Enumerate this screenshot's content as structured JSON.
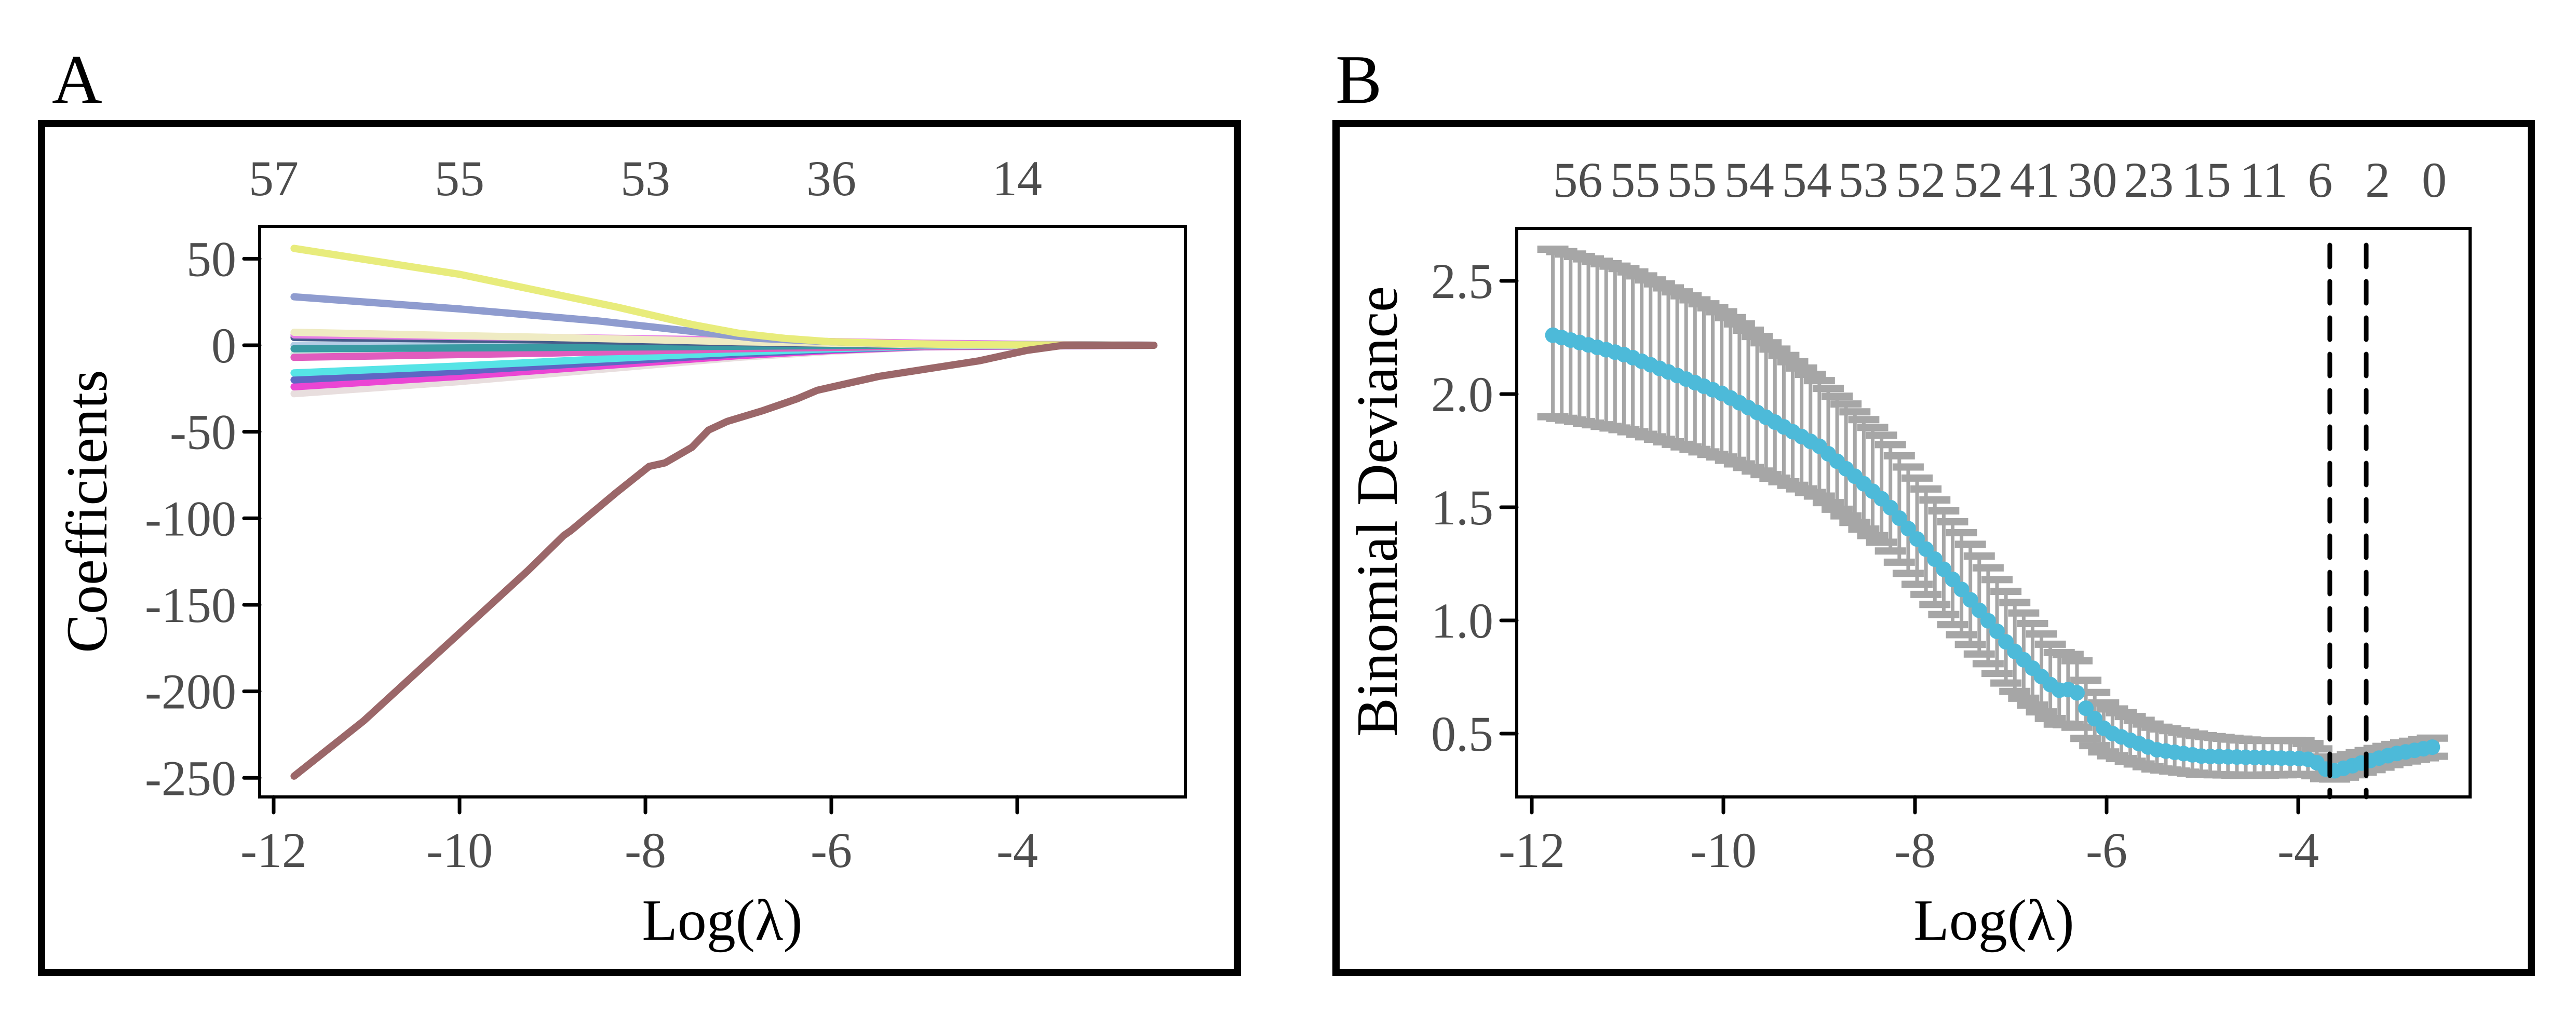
{
  "chart_data": [
    {
      "panel": "A",
      "type": "line",
      "xlabel": "Log(λ)",
      "ylabel": "Coefficients",
      "xlim": [
        -12.15,
        -2.2
      ],
      "ylim": [
        -260,
        68
      ],
      "x_ticks": [
        -12,
        -10,
        -8,
        -6,
        -4
      ],
      "x_tick_labels": [
        "-12",
        "-10",
        "-8",
        "-6",
        "-4"
      ],
      "y_ticks": [
        50,
        0,
        -50,
        -100,
        -150,
        -200,
        -250
      ],
      "y_tick_labels": [
        "50",
        "0",
        "-50",
        "-100",
        "-150",
        "-200",
        "-250"
      ],
      "top_axis": {
        "positions": [
          -12,
          -10,
          -8,
          -6,
          -4
        ],
        "labels": [
          "57",
          "55",
          "53",
          "36",
          "14"
        ]
      },
      "grid": false,
      "series": [
        {
          "name": "coef-brown",
          "color": "#9b6769",
          "x": [
            -11.78,
            -11.03,
            -9.26,
            -8.88,
            -8.8,
            -8.31,
            -7.96,
            -7.79,
            -7.5,
            -7.32,
            -7.12,
            -6.75,
            -6.37,
            -6.15,
            -5.49,
            -4.41,
            -3.9,
            -3.5,
            -2.53
          ],
          "y": [
            -249,
            -217,
            -130,
            -110,
            -107,
            -85,
            -70,
            -68,
            -59,
            -49,
            -44,
            -38,
            -31,
            -26,
            -18,
            -9,
            -3,
            0,
            0
          ]
        },
        {
          "name": "coef-yellow",
          "color": "#e8ec7c",
          "x": [
            -11.78,
            -10,
            -8.3,
            -7.5,
            -7,
            -6.5,
            -6,
            -5.3,
            -4.5,
            -2.53
          ],
          "y": [
            56,
            41,
            22,
            12,
            7,
            4,
            2,
            1,
            0.3,
            0
          ]
        },
        {
          "name": "coef-periwinkle",
          "color": "#8f9ccf",
          "x": [
            -11.78,
            -10,
            -8.5,
            -7.5,
            -6.8,
            -6,
            -5,
            -2.53
          ],
          "y": [
            28,
            21,
            14,
            8,
            4,
            2,
            0.5,
            0
          ]
        },
        {
          "name": "coef-pale-yellow",
          "color": "#efebc3",
          "x": [
            -11.78,
            -9,
            -7,
            -5,
            -2.53
          ],
          "y": [
            7.5,
            4.5,
            2,
            0.4,
            0
          ]
        },
        {
          "name": "coef-orchid-pos",
          "color": "#e77fe6",
          "x": [
            -11.78,
            -9,
            -7,
            -5,
            -3.5,
            -2.53
          ],
          "y": [
            6,
            4.5,
            3,
            1.2,
            0.3,
            0
          ]
        },
        {
          "name": "coef-dark-slate",
          "color": "#465c8a",
          "x": [
            -11.78,
            -9,
            -7,
            -5,
            -2.53
          ],
          "y": [
            4.5,
            3,
            1.5,
            0.4,
            0
          ]
        },
        {
          "name": "coef-teal",
          "color": "#3a9aa3",
          "x": [
            -11.78,
            -9,
            -7,
            -4,
            -2.53
          ],
          "y": [
            -2,
            -1.3,
            -0.6,
            0.5,
            0
          ]
        },
        {
          "name": "coef-light-blue",
          "color": "#b5cde6",
          "x": [
            -11.78,
            -9,
            -7,
            -5,
            -2.53
          ],
          "y": [
            0,
            0,
            0,
            0,
            0
          ]
        },
        {
          "name": "coef-orchid",
          "color": "#e05cbe",
          "x": [
            -11.78,
            -9,
            -7,
            -5,
            -2.53
          ],
          "y": [
            -7,
            -4.5,
            -2,
            -0.5,
            0
          ]
        },
        {
          "name": "coef-mint",
          "color": "#cfece0",
          "x": [
            -11.78,
            -9,
            -7,
            -5,
            -2.53
          ],
          "y": [
            -5,
            -3,
            -1.5,
            -0.3,
            0
          ]
        },
        {
          "name": "coef-cyan",
          "color": "#56e4e6",
          "x": [
            -11.78,
            -10,
            -8.5,
            -7,
            -6,
            -5,
            -2.53
          ],
          "y": [
            -16,
            -12,
            -8,
            -4,
            -2,
            -0.6,
            0
          ]
        },
        {
          "name": "coef-slate-blue",
          "color": "#5e66c4",
          "x": [
            -11.78,
            -10,
            -8.5,
            -7,
            -6,
            -5,
            -2.53
          ],
          "y": [
            -20,
            -15,
            -10,
            -5,
            -2.5,
            -0.7,
            0
          ]
        },
        {
          "name": "coef-magenta",
          "color": "#eb45d4",
          "x": [
            -11.78,
            -10,
            -8.5,
            -7,
            -6,
            -5,
            -2.53
          ],
          "y": [
            -24,
            -18,
            -12,
            -6,
            -3,
            -0.8,
            0
          ]
        },
        {
          "name": "coef-pale-grey",
          "color": "#e8dede",
          "x": [
            -11.78,
            -10,
            -8.5,
            -7,
            -6,
            -5,
            -2.53
          ],
          "y": [
            -28,
            -21,
            -14,
            -7,
            -3.5,
            -1,
            0
          ]
        }
      ]
    },
    {
      "panel": "B",
      "type": "scatter",
      "xlabel": "Log(λ)",
      "ylabel": "Binomial Deviance",
      "xlim": [
        -12.16,
        -2.2
      ],
      "ylim": [
        0.22,
        2.7
      ],
      "x_ticks": [
        -12,
        -10,
        -8,
        -6,
        -4
      ],
      "x_tick_labels": [
        "-12",
        "-10",
        "-8",
        "-6",
        "-4"
      ],
      "y_ticks": [
        2.5,
        2.0,
        1.5,
        1.0,
        0.5
      ],
      "y_tick_labels": [
        "2.5",
        "2.0",
        "1.5",
        "1.0",
        "0.5"
      ],
      "top_axis": {
        "positions": [
          -11.52,
          -10.92,
          -10.33,
          -9.73,
          -9.13,
          -8.54,
          -7.94,
          -7.34,
          -6.75,
          -6.15,
          -5.56,
          -4.96,
          -4.36,
          -3.77,
          -3.17,
          -2.58
        ],
        "labels": [
          "56",
          "55",
          "55",
          "54",
          "54",
          "53",
          "52",
          "52",
          "41",
          "30",
          "23",
          "15",
          "11",
          "6",
          "2",
          "0"
        ]
      },
      "grid": false,
      "point_color": "#4dbad9",
      "errorbar_color": "#a6a6a6",
      "reference_lines": {
        "lambda_min": -3.67,
        "lambda_1se": -3.29,
        "style": "dashed",
        "color": "#000000"
      },
      "curve_nodes": {
        "x": [
          -11.78,
          -11.0,
          -10.0,
          -9.0,
          -8.3,
          -8.0,
          -7.5,
          -7.0,
          -6.6,
          -6.45,
          -6.35,
          -6.2,
          -6.0,
          -5.5,
          -5.0,
          -4.5,
          -4.0,
          -3.85,
          -3.67,
          -3.5,
          -3.3,
          -3.0,
          -2.6
        ],
        "mean": [
          2.26,
          2.17,
          2.0,
          1.77,
          1.52,
          1.37,
          1.13,
          0.88,
          0.72,
          0.68,
          0.71,
          0.6,
          0.51,
          0.43,
          0.4,
          0.395,
          0.39,
          0.385,
          0.33,
          0.35,
          0.375,
          0.41,
          0.44
        ],
        "lower": [
          1.9,
          1.84,
          1.72,
          1.55,
          1.33,
          1.17,
          0.93,
          0.7,
          0.57,
          0.53,
          0.55,
          0.47,
          0.41,
          0.345,
          0.32,
          0.315,
          0.32,
          0.32,
          0.295,
          0.31,
          0.335,
          0.37,
          0.4
        ],
        "upper": [
          2.64,
          2.55,
          2.36,
          2.06,
          1.8,
          1.64,
          1.38,
          1.1,
          0.9,
          0.84,
          0.86,
          0.72,
          0.62,
          0.53,
          0.49,
          0.47,
          0.47,
          0.45,
          0.38,
          0.4,
          0.42,
          0.45,
          0.48
        ]
      },
      "n_points": 100
    }
  ],
  "panels": {
    "a_label": "A",
    "b_label": "B"
  }
}
